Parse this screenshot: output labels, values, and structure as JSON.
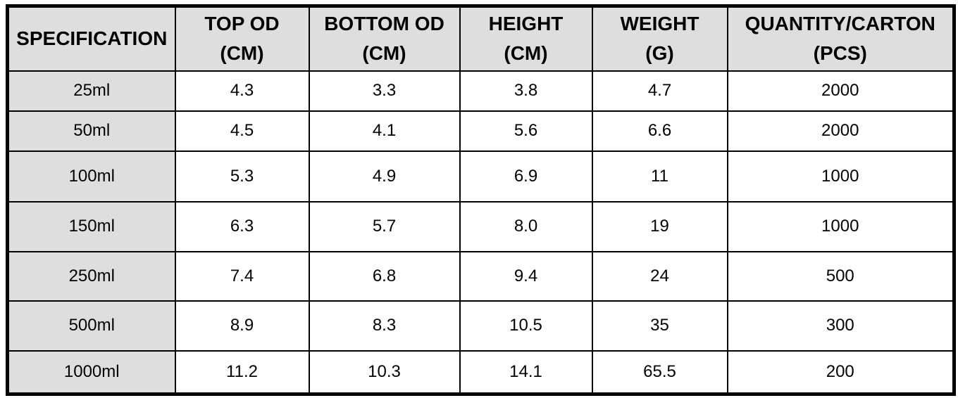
{
  "table": {
    "header": [
      {
        "lines": [
          "SPECIFICATION"
        ]
      },
      {
        "lines": [
          "TOP OD",
          "(CM)"
        ]
      },
      {
        "lines": [
          "BOTTOM OD",
          "(CM)"
        ]
      },
      {
        "lines": [
          "HEIGHT",
          "(CM)"
        ]
      },
      {
        "lines": [
          "WEIGHT",
          "(G)"
        ]
      },
      {
        "lines": [
          "QUANTITY/CARTON",
          "(PCS)"
        ]
      }
    ],
    "rows": [
      [
        "25ml",
        "4.3",
        "3.3",
        "3.8",
        "4.7",
        "2000"
      ],
      [
        "50ml",
        "4.5",
        "4.1",
        "5.6",
        "6.6",
        "2000"
      ],
      [
        "100ml",
        "5.3",
        "4.9",
        "6.9",
        "11",
        "1000"
      ],
      [
        "150ml",
        "6.3",
        "5.7",
        "8.0",
        "19",
        "1000"
      ],
      [
        "250ml",
        "7.4",
        "6.8",
        "9.4",
        "24",
        "500"
      ],
      [
        "500ml",
        "8.9",
        "8.3",
        "10.5",
        "35",
        "300"
      ],
      [
        "1000ml",
        "11.2",
        "10.3",
        "14.1",
        "65.5",
        "200"
      ]
    ]
  }
}
